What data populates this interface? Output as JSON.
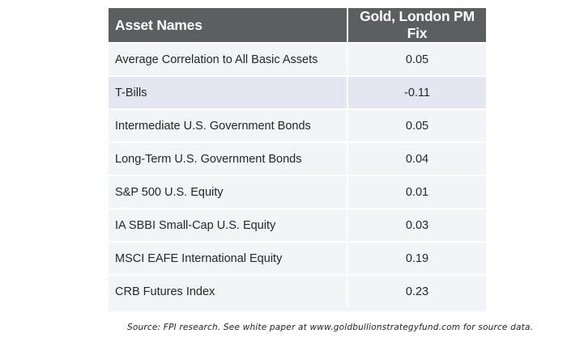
{
  "table": {
    "headers": {
      "asset": "Asset Names",
      "value": "Gold, London PM Fix"
    },
    "rows": [
      {
        "asset": "Average Correlation to All Basic Assets",
        "value": "0.05"
      },
      {
        "asset": "T-Bills",
        "value": "-0.11"
      },
      {
        "asset": "Intermediate U.S. Government Bonds",
        "value": "0.05"
      },
      {
        "asset": "Long-Term U.S. Government Bonds",
        "value": "0.04"
      },
      {
        "asset": "S&P 500 U.S. Equity",
        "value": "0.01"
      },
      {
        "asset": "IA SBBI Small-Cap U.S. Equity",
        "value": "0.03"
      },
      {
        "asset": "MSCI EAFE International Equity",
        "value": "0.19"
      },
      {
        "asset": "CRB Futures Index",
        "value": "0.23"
      }
    ]
  },
  "source_note": "Source: FPI research. See white paper at www.goldbullionstrategyfund.com for source data.",
  "colors": {
    "header_bg": "#5b5f60",
    "row_light": "#f3f4f8",
    "row_highlight": "#e4e7f1"
  }
}
